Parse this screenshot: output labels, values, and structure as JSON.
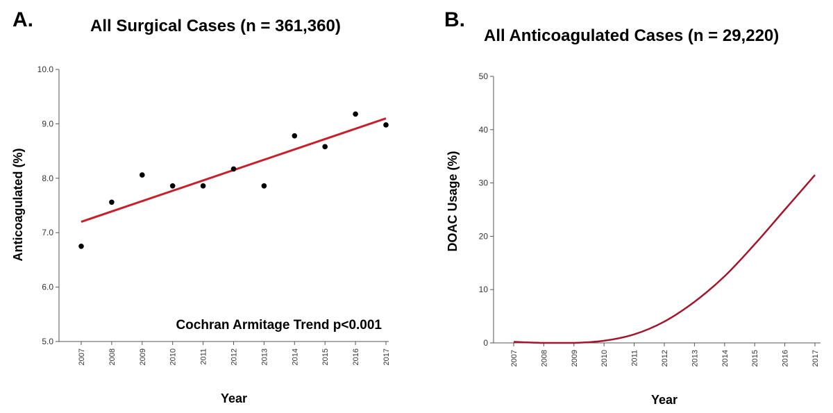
{
  "colors": {
    "line": "#c8202a",
    "curve": "#a3152a",
    "axis": "#555555",
    "point": "#000000"
  },
  "chart_data": [
    {
      "panel": "A.",
      "type": "scatter",
      "title": "All Surgical Cases (n = 361,360)",
      "xlabel": "Year",
      "ylabel": "Anticoagulated (%)",
      "x": [
        "2007",
        "2008",
        "2009",
        "2010",
        "2011",
        "2012",
        "2013",
        "2014",
        "2015",
        "2016",
        "2017"
      ],
      "y": [
        6.75,
        7.56,
        8.06,
        7.86,
        7.86,
        8.17,
        7.86,
        8.78,
        8.58,
        9.18,
        8.98
      ],
      "trendline": {
        "x": [
          "2007",
          "2017"
        ],
        "y": [
          7.2,
          9.1
        ]
      },
      "yticks": [
        "5.0",
        "6.0",
        "7.0",
        "8.0",
        "9.0",
        "10.0"
      ],
      "ylim": [
        5.0,
        10.0
      ],
      "annotation": "Cochran Armitage Trend p<0.001"
    },
    {
      "panel": "B.",
      "type": "line",
      "title": "All Anticoagulated Cases (n = 29,220)",
      "xlabel": "Year",
      "ylabel": "DOAC Usage (%)",
      "x": [
        "2007",
        "2008",
        "2009",
        "2010",
        "2011",
        "2012",
        "2013",
        "2014",
        "2015",
        "2016",
        "2017"
      ],
      "y": [
        0.2,
        0.0,
        0.0,
        0.4,
        1.6,
        4.0,
        7.7,
        12.5,
        18.5,
        25.0,
        31.5
      ],
      "yticks": [
        "0",
        "10",
        "20",
        "30",
        "40",
        "50"
      ],
      "ylim": [
        0,
        50
      ]
    }
  ]
}
